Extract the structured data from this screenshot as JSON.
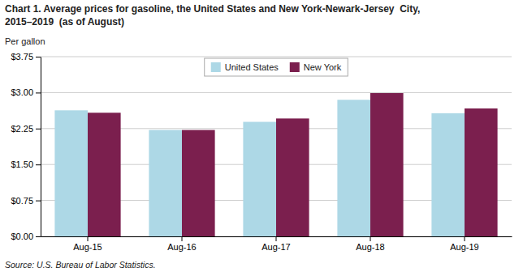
{
  "chart_data": {
    "type": "bar",
    "title": [
      "Chart 1. Average prices for gasoline, the United States and New York-Newark-Jersey  City,",
      "2015–2019  (as of August)"
    ],
    "y_label": "Per gallon",
    "source": "Source: U.S. Bureau of Labor Statistics.",
    "categories": [
      "Aug-15",
      "Aug-16",
      "Aug-17",
      "Aug-18",
      "Aug-19"
    ],
    "series": [
      {
        "name": "United States",
        "color": "#add8e6",
        "values": [
          2.63,
          2.22,
          2.39,
          2.85,
          2.57
        ]
      },
      {
        "name": "New York",
        "color": "#7b1f4e",
        "values": [
          2.58,
          2.22,
          2.46,
          2.99,
          2.67
        ]
      }
    ],
    "ylim": [
      0,
      3.75
    ],
    "yticks": [
      {
        "value": 0,
        "label": "$0.00"
      },
      {
        "value": 0.75,
        "label": "$0.75"
      },
      {
        "value": 1.5,
        "label": "$1.50"
      },
      {
        "value": 2.25,
        "label": "$2.25"
      },
      {
        "value": 3.0,
        "label": "$3.00"
      },
      {
        "value": 3.75,
        "label": "$3.75"
      }
    ],
    "grid": true,
    "legend": "top"
  }
}
